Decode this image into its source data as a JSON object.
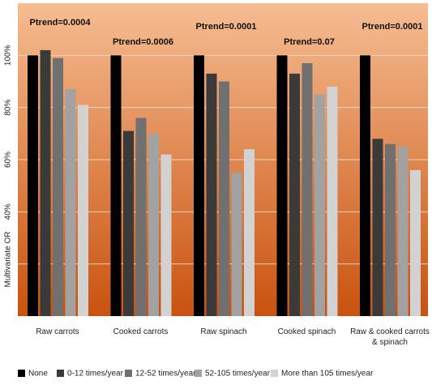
{
  "chart_data": {
    "type": "bar",
    "y_label": "Multivariate OR",
    "categories": [
      "Raw carrots",
      "Cooked carrots",
      "Raw spinach",
      "Cooked spinach",
      "Raw & cooked carrots & spinach"
    ],
    "series": [
      {
        "name": "None",
        "color": "#000000",
        "values": [
          100,
          100,
          100,
          100,
          100
        ]
      },
      {
        "name": "0-12 times/year",
        "color": "#3a3a3a",
        "values": [
          102,
          71,
          93,
          93,
          68
        ]
      },
      {
        "name": "12-52 times/year",
        "color": "#707070",
        "values": [
          99,
          76,
          90,
          97,
          66
        ]
      },
      {
        "name": "52-105 times/year",
        "color": "#a2a2a2",
        "values": [
          87,
          70,
          55,
          85,
          65
        ]
      },
      {
        "name": "More than 105 times/year",
        "color": "#d2d2d2",
        "values": [
          81,
          62,
          64,
          88,
          56
        ]
      }
    ],
    "annotations": [
      "Ptrend=0.0004",
      "Ptrend=0.0006",
      "Ptrend=0.0001",
      "Ptrend=0.07",
      "Ptrend=0.0001"
    ],
    "ylim": [
      0,
      120
    ],
    "yticks": [
      {
        "value": 40,
        "label": "40%"
      },
      {
        "value": 60,
        "label": "60%"
      },
      {
        "value": 80,
        "label": "80%"
      },
      {
        "value": 100,
        "label": "100%"
      }
    ],
    "ygrid": [
      20,
      40,
      60,
      80,
      100
    ],
    "grid": true,
    "legend": "bottom"
  }
}
